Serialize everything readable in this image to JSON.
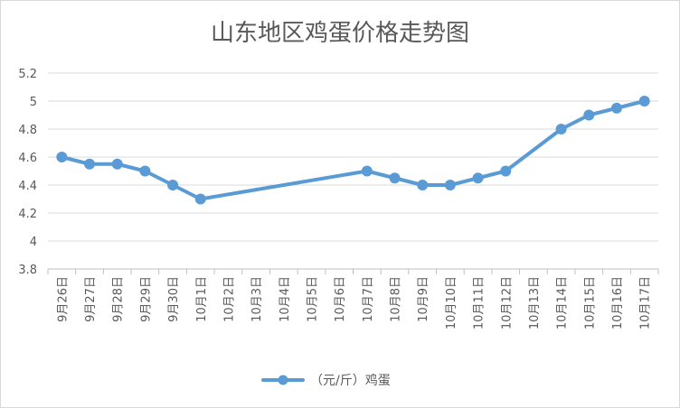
{
  "chart_data": {
    "type": "line",
    "title": "山东地区鸡蛋价格走势图",
    "xlabel": "",
    "ylabel": "",
    "categories": [
      "9月26日",
      "9月27日",
      "9月28日",
      "9月29日",
      "9月30日",
      "10月1日",
      "10月2日",
      "10月3日",
      "10月4日",
      "10月5日",
      "10月6日",
      "10月7日",
      "10月8日",
      "10月9日",
      "10月10日",
      "10月11日",
      "10月12日",
      "10月13日",
      "10月14日",
      "10月15日",
      "10月16日",
      "10月17日"
    ],
    "series": [
      {
        "name": "（元/斤）鸡蛋",
        "color": "#5b9bd5",
        "values": [
          4.6,
          4.55,
          4.55,
          4.5,
          4.4,
          4.3,
          null,
          null,
          null,
          null,
          null,
          4.5,
          4.45,
          4.4,
          4.4,
          4.45,
          4.5,
          null,
          4.8,
          4.9,
          4.95,
          5.0
        ]
      }
    ],
    "ylim": [
      3.8,
      5.2
    ],
    "yticks": [
      3.8,
      4,
      4.2,
      4.4,
      4.6,
      4.8,
      5,
      5.2
    ],
    "ytick_labels": [
      "3.8",
      "4",
      "4.2",
      "4.4",
      "4.6",
      "4.8",
      "5",
      "5.2"
    ],
    "grid": true,
    "legend_position": "bottom"
  }
}
